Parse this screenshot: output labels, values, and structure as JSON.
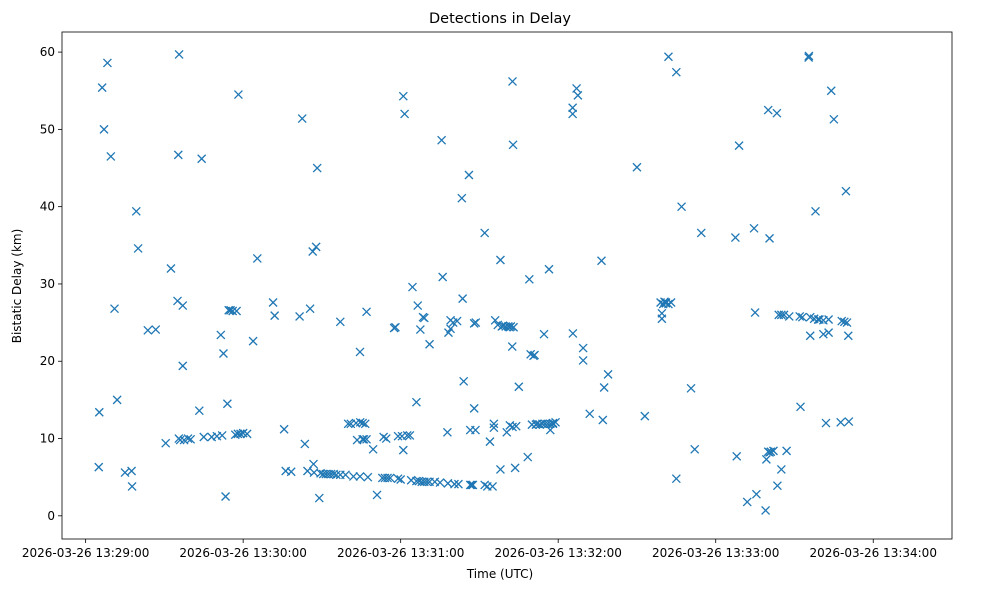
{
  "chart_data": {
    "type": "scatter",
    "title": "Detections in Delay",
    "xlabel": "Time (UTC)",
    "ylabel": "Bistatic Delay (km)",
    "x_unit": "seconds since 2026-03-26 13:29:00 UTC",
    "xlim": [
      -9,
      330
    ],
    "ylim": [
      -3,
      62.6
    ],
    "xticks": [
      {
        "value": 0,
        "label": "2026-03-26 13:29:00"
      },
      {
        "value": 60,
        "label": "2026-03-26 13:30:00"
      },
      {
        "value": 120,
        "label": "2026-03-26 13:31:00"
      },
      {
        "value": 180,
        "label": "2026-03-26 13:32:00"
      },
      {
        "value": 240,
        "label": "2026-03-26 13:33:00"
      },
      {
        "value": 300,
        "label": "2026-03-26 13:34:00"
      }
    ],
    "yticks": [
      0,
      10,
      20,
      30,
      40,
      50,
      60
    ],
    "marker": "x",
    "color": "#1f77b4",
    "series": [
      {
        "name": "detections",
        "points": [
          [
            5,
            6.3
          ],
          [
            5.2,
            13.4
          ],
          [
            6.3,
            55.4
          ],
          [
            7,
            50
          ],
          [
            8.3,
            58.6
          ],
          [
            9.6,
            46.5
          ],
          [
            11,
            26.8
          ],
          [
            12,
            15
          ],
          [
            15,
            5.6
          ],
          [
            17.5,
            5.8
          ],
          [
            17.7,
            3.8
          ],
          [
            19.3,
            39.4
          ],
          [
            20,
            34.6
          ],
          [
            23.7,
            24
          ],
          [
            26.7,
            24.1
          ],
          [
            30.5,
            9.4
          ],
          [
            32.5,
            32
          ],
          [
            35,
            27.8
          ],
          [
            35.6,
            59.7
          ],
          [
            35.3,
            46.7
          ],
          [
            35.5,
            10
          ],
          [
            36,
            9.8
          ],
          [
            37,
            19.4
          ],
          [
            37,
            27.2
          ],
          [
            37.5,
            9.8
          ],
          [
            39,
            10
          ],
          [
            40,
            9.9
          ],
          [
            43.3,
            13.6
          ],
          [
            44.2,
            46.2
          ],
          [
            45,
            10.2
          ],
          [
            48,
            10.2
          ],
          [
            50,
            10.3
          ],
          [
            51.5,
            23.4
          ],
          [
            52,
            10.4
          ],
          [
            52.5,
            21
          ],
          [
            53.3,
            2.5
          ],
          [
            54,
            14.5
          ],
          [
            54.5,
            26.6
          ],
          [
            55.2,
            26.6
          ],
          [
            56,
            26.5
          ],
          [
            57,
            10.5
          ],
          [
            57.5,
            26.5
          ],
          [
            58,
            10.6
          ],
          [
            58.2,
            54.5
          ],
          [
            59,
            10.6
          ],
          [
            60,
            10.7
          ],
          [
            61.5,
            10.6
          ],
          [
            63.8,
            22.6
          ],
          [
            65.4,
            33.3
          ],
          [
            71.4,
            27.6
          ],
          [
            72,
            25.9
          ],
          [
            75.6,
            11.2
          ],
          [
            76.2,
            5.8
          ],
          [
            78.3,
            5.7
          ],
          [
            81.5,
            25.8
          ],
          [
            82.5,
            51.4
          ],
          [
            83.5,
            9.3
          ],
          [
            84.5,
            5.8
          ],
          [
            85.5,
            26.8
          ],
          [
            86.5,
            34.2
          ],
          [
            87,
            5.6
          ],
          [
            86.8,
            6.7
          ],
          [
            87.8,
            34.8
          ],
          [
            88.2,
            45
          ],
          [
            89,
            2.3
          ],
          [
            89.5,
            5.5
          ],
          [
            90.5,
            5.4
          ],
          [
            91.5,
            5.4
          ],
          [
            92.5,
            5.4
          ],
          [
            93.5,
            5.4
          ],
          [
            94.5,
            5.4
          ],
          [
            95.5,
            5.3
          ],
          [
            97,
            5.3
          ],
          [
            97,
            25.1
          ],
          [
            99,
            5.3
          ],
          [
            100,
            11.9
          ],
          [
            101,
            11.9
          ],
          [
            102,
            5.1
          ],
          [
            103,
            12
          ],
          [
            103.4,
            9.8
          ],
          [
            104.5,
            5.1
          ],
          [
            104.6,
            12.1
          ],
          [
            104.5,
            21.2
          ],
          [
            105.5,
            12
          ],
          [
            105.5,
            9.9
          ],
          [
            106,
            9.9
          ],
          [
            106.5,
            11.9
          ],
          [
            107,
            26.4
          ],
          [
            107.5,
            5
          ],
          [
            107,
            9.9
          ],
          [
            109.5,
            8.6
          ],
          [
            111,
            2.7
          ],
          [
            113,
            4.9
          ],
          [
            113.5,
            10.2
          ],
          [
            114,
            4.9
          ],
          [
            114.5,
            10
          ],
          [
            115,
            4.9
          ],
          [
            116,
            4.9
          ],
          [
            117.5,
            24.3
          ],
          [
            118,
            24.4
          ],
          [
            119,
            10.3
          ],
          [
            119,
            4.8
          ],
          [
            120,
            4.7
          ],
          [
            120.5,
            10.3
          ],
          [
            121,
            8.5
          ],
          [
            121,
            54.3
          ],
          [
            121.5,
            52
          ],
          [
            122.5,
            10.4
          ],
          [
            123.5,
            10.4
          ],
          [
            124,
            4.6
          ],
          [
            124.5,
            29.6
          ],
          [
            126,
            4.5
          ],
          [
            126,
            14.7
          ],
          [
            127,
            4.5
          ],
          [
            126.5,
            27.2
          ],
          [
            127.5,
            24.1
          ],
          [
            128,
            4.4
          ],
          [
            128.5,
            25.7
          ],
          [
            129,
            25.6
          ],
          [
            129,
            4.4
          ],
          [
            130,
            4.4
          ],
          [
            131,
            4.4
          ],
          [
            131,
            22.2
          ],
          [
            133,
            4.4
          ],
          [
            135,
            4.3
          ],
          [
            135.6,
            48.6
          ],
          [
            136,
            30.9
          ],
          [
            138,
            4.2
          ],
          [
            137.8,
            10.8
          ],
          [
            138.2,
            23.7
          ],
          [
            139,
            25.3
          ],
          [
            139,
            24.2
          ],
          [
            140,
            25
          ],
          [
            140.5,
            4.1
          ],
          [
            141.5,
            25.2
          ],
          [
            142,
            4.1
          ],
          [
            143.3,
            41.1
          ],
          [
            143.6,
            28.1
          ],
          [
            144,
            17.4
          ],
          [
            146,
            44.1
          ],
          [
            146.5,
            4
          ],
          [
            146.5,
            11.1
          ],
          [
            147,
            4
          ],
          [
            147.5,
            4
          ],
          [
            148,
            13.9
          ],
          [
            148.5,
            11.1
          ],
          [
            148,
            24.9
          ],
          [
            148.6,
            25
          ],
          [
            152,
            36.6
          ],
          [
            152,
            4
          ],
          [
            153,
            3.8
          ],
          [
            154,
            9.6
          ],
          [
            155,
            3.8
          ],
          [
            155.5,
            11.4
          ],
          [
            155.5,
            11.9
          ],
          [
            156,
            25.3
          ],
          [
            157,
            24.7
          ],
          [
            158,
            6
          ],
          [
            158,
            33.1
          ],
          [
            158.5,
            24.5
          ],
          [
            159,
            24.6
          ],
          [
            160,
            24.5
          ],
          [
            161,
            24.5
          ],
          [
            161.6,
            11.7
          ],
          [
            161.5,
            24.4
          ],
          [
            160.4,
            10.8
          ],
          [
            162,
            24.5
          ],
          [
            162.6,
            11.5
          ],
          [
            162.6,
            56.2
          ],
          [
            162.8,
            48
          ],
          [
            162.5,
            21.9
          ],
          [
            163,
            24.4
          ],
          [
            163.6,
            6.2
          ],
          [
            164,
            11.6
          ],
          [
            165,
            16.7
          ],
          [
            169,
            30.6
          ],
          [
            168.4,
            7.6
          ],
          [
            169.5,
            20.9
          ],
          [
            170.6,
            20.7
          ],
          [
            170,
            11.8
          ],
          [
            171,
            20.8
          ],
          [
            171.5,
            11.8
          ],
          [
            172,
            11.9
          ],
          [
            173,
            11.8
          ],
          [
            174,
            11.9
          ],
          [
            174.6,
            23.5
          ],
          [
            175,
            11.9
          ],
          [
            176,
            11.9
          ],
          [
            176.5,
            31.9
          ],
          [
            177,
            11.9
          ],
          [
            177,
            11.1
          ],
          [
            178,
            11.9
          ],
          [
            178,
            12
          ],
          [
            179,
            12.1
          ],
          [
            185.5,
            52
          ],
          [
            185.5,
            52.8
          ],
          [
            185.6,
            23.6
          ],
          [
            187,
            55.3
          ],
          [
            187.5,
            54.4
          ],
          [
            189.5,
            21.7
          ],
          [
            189.5,
            20.1
          ],
          [
            192,
            13.2
          ],
          [
            196.5,
            33
          ],
          [
            197,
            12.4
          ],
          [
            197.5,
            16.6
          ],
          [
            199,
            18.3
          ],
          [
            210,
            45.1
          ],
          [
            213,
            12.9
          ],
          [
            219,
            27.6
          ],
          [
            219.5,
            25.5
          ],
          [
            219.5,
            26.2
          ],
          [
            220,
            27.4
          ],
          [
            220.5,
            27.7
          ],
          [
            221,
            27.6
          ],
          [
            221,
            27.5
          ],
          [
            222,
            59.4
          ],
          [
            222,
            27.4
          ],
          [
            223,
            27.6
          ],
          [
            225,
            4.8
          ],
          [
            225,
            57.4
          ],
          [
            227,
            40
          ],
          [
            230.6,
            16.5
          ],
          [
            232,
            8.6
          ],
          [
            234.5,
            36.6
          ],
          [
            248,
            7.7
          ],
          [
            247.5,
            36
          ],
          [
            248.9,
            47.9
          ],
          [
            252,
            1.8
          ],
          [
            254.6,
            37.2
          ],
          [
            255,
            26.3
          ],
          [
            255.5,
            2.8
          ],
          [
            259,
            0.7
          ],
          [
            259.3,
            7.3
          ],
          [
            260,
            8.3
          ],
          [
            260.5,
            8.2
          ],
          [
            260,
            52.5
          ],
          [
            260.5,
            35.9
          ],
          [
            261,
            8.3
          ],
          [
            262,
            8.4
          ],
          [
            263.3,
            52.1
          ],
          [
            263.5,
            3.9
          ],
          [
            264,
            26
          ],
          [
            265,
            6
          ],
          [
            265,
            26
          ],
          [
            266,
            26
          ],
          [
            267,
            8.4
          ],
          [
            268,
            25.8
          ],
          [
            272,
            25.8
          ],
          [
            272.3,
            14.1
          ],
          [
            273,
            25.7
          ],
          [
            275.4,
            59.3
          ],
          [
            275.5,
            59.5
          ],
          [
            276,
            25.7
          ],
          [
            276,
            23.3
          ],
          [
            277.5,
            25.5
          ],
          [
            278,
            39.4
          ],
          [
            279,
            25.4
          ],
          [
            279.5,
            25.4
          ],
          [
            281,
            23.5
          ],
          [
            281,
            25.3
          ],
          [
            282,
            12
          ],
          [
            283,
            23.7
          ],
          [
            283,
            25.4
          ],
          [
            284,
            55
          ],
          [
            285,
            51.3
          ],
          [
            287.6,
            12.1
          ],
          [
            288,
            25.2
          ],
          [
            289,
            25.1
          ],
          [
            289.6,
            42
          ],
          [
            290,
            25
          ],
          [
            290.5,
            23.3
          ],
          [
            290.7,
            12.2
          ]
        ]
      }
    ]
  }
}
